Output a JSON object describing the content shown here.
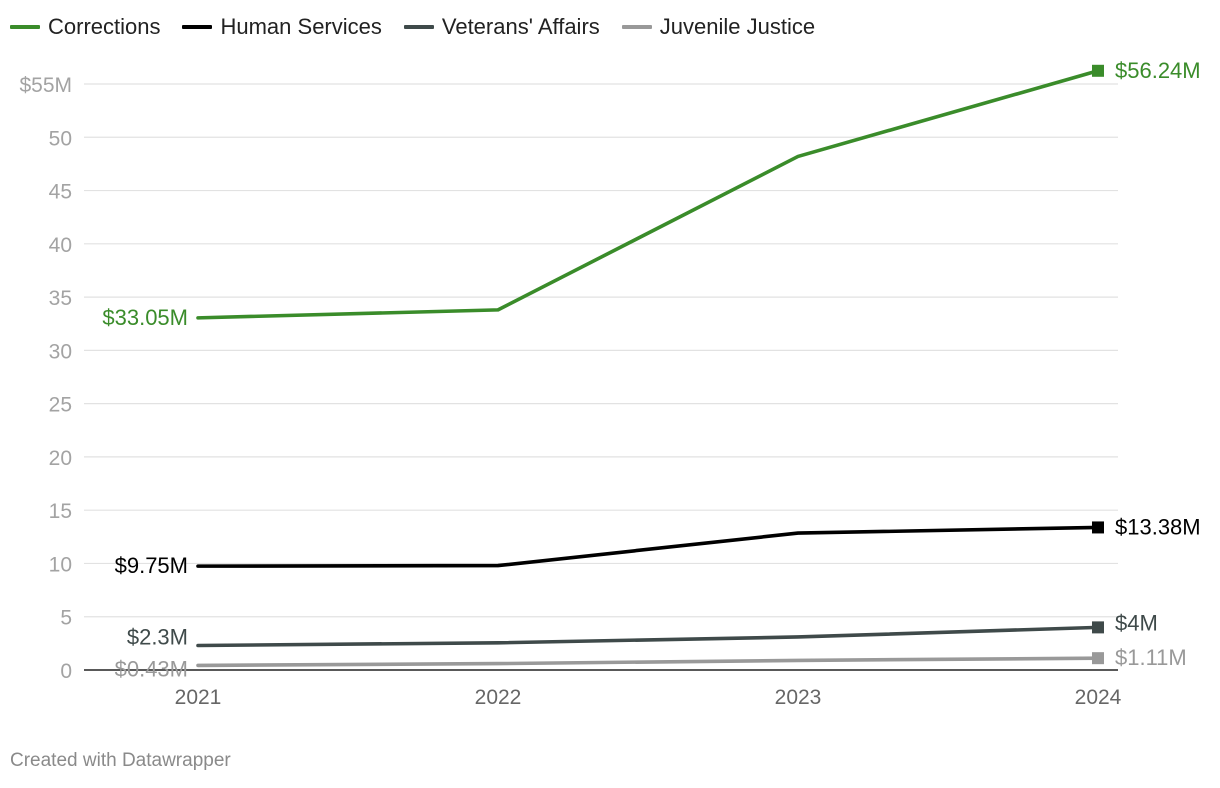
{
  "chart_data": {
    "type": "line",
    "title": "",
    "xlabel": "",
    "ylabel": "",
    "x": [
      "2021",
      "2022",
      "2023",
      "2024"
    ],
    "ylim": [
      0,
      55
    ],
    "y_ticks": [
      0,
      5,
      10,
      15,
      20,
      25,
      30,
      35,
      40,
      45,
      50,
      55
    ],
    "y_tick_labels": [
      "0",
      "5",
      "10",
      "15",
      "20",
      "25",
      "30",
      "35",
      "40",
      "45",
      "50",
      "$55M"
    ],
    "grid": true,
    "legend_position": "top-left",
    "series": [
      {
        "name": "Corrections",
        "color": "#3a8c2a",
        "values": [
          33.05,
          33.8,
          48.2,
          56.24
        ],
        "start_label": "$33.05M",
        "end_label": "$56.24M"
      },
      {
        "name": "Human Services",
        "color": "#000000",
        "values": [
          9.75,
          9.8,
          12.85,
          13.38
        ],
        "start_label": "$9.75M",
        "end_label": "$13.38M"
      },
      {
        "name": "Veterans' Affairs",
        "color": "#3f4a4a",
        "values": [
          2.3,
          2.55,
          3.1,
          4.0
        ],
        "start_label": "$2.3M",
        "end_label": "$4M"
      },
      {
        "name": "Juvenile Justice",
        "color": "#999999",
        "values": [
          0.43,
          0.6,
          0.9,
          1.11
        ],
        "start_label": "$0.43M",
        "end_label": "$1.11M"
      }
    ]
  },
  "footer": {
    "credit": "Created with Datawrapper"
  }
}
